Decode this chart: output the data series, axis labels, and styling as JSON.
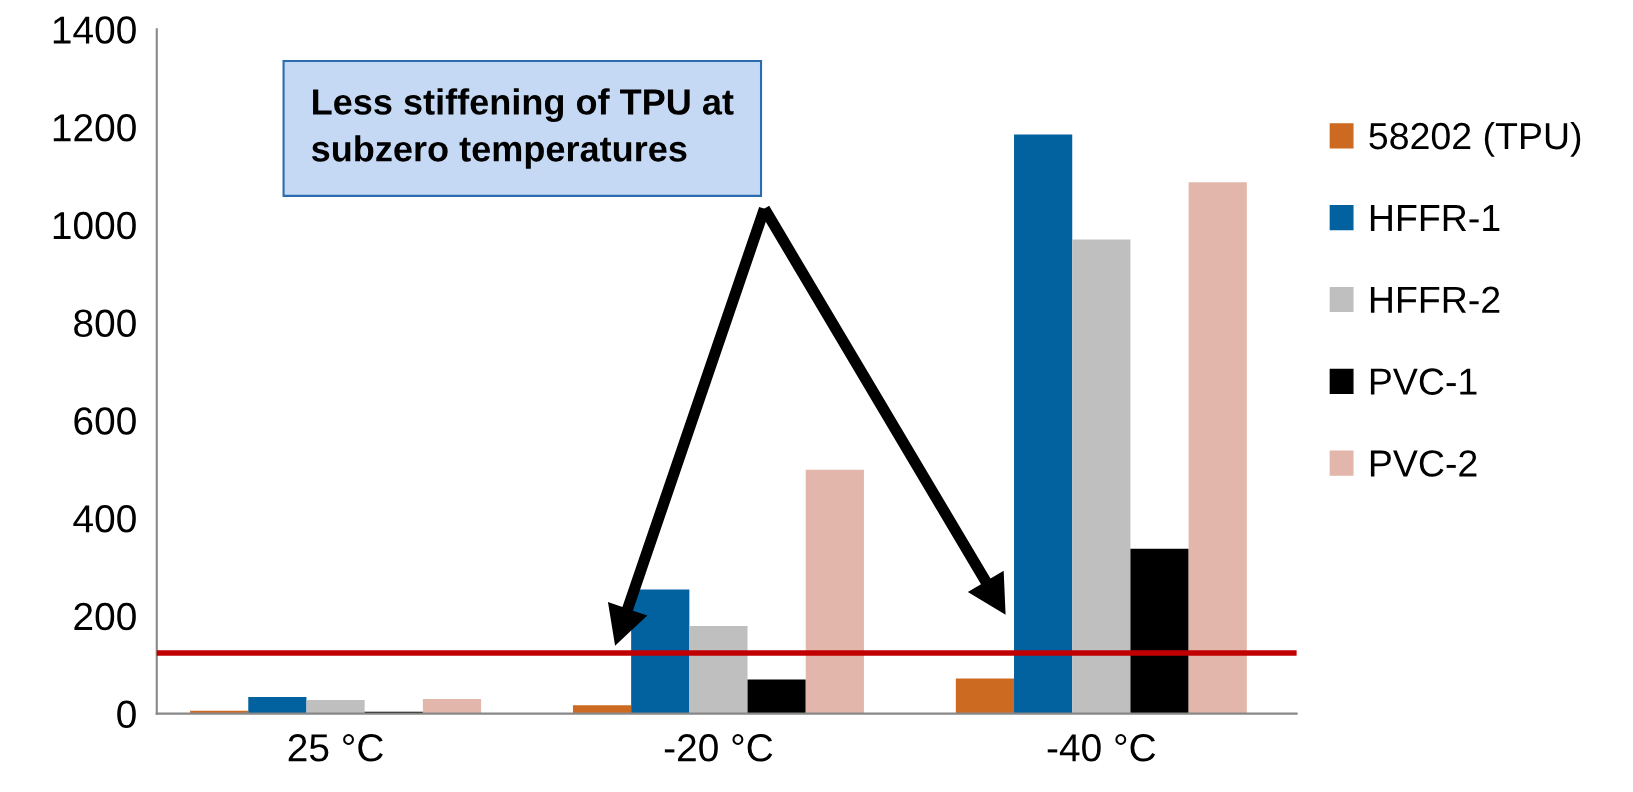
{
  "chart_data": {
    "type": "bar",
    "categories": [
      "25 °C",
      "-20 °C",
      "-40 °C"
    ],
    "series": [
      {
        "name": "58202 (TPU)",
        "color": "#cc6a22",
        "values": [
          6,
          17,
          72
        ]
      },
      {
        "name": "HFFR-1",
        "color": "#02619f",
        "values": [
          34,
          254,
          1185
        ]
      },
      {
        "name": "HFFR-2",
        "color": "#bfbfbf",
        "values": [
          28,
          179,
          970
        ]
      },
      {
        "name": "PVC-1",
        "color": "#000000",
        "values": [
          4,
          70,
          337
        ]
      },
      {
        "name": "PVC-2",
        "color": "#e2b6aa",
        "values": [
          30,
          499,
          1087
        ]
      }
    ],
    "ylim": [
      0,
      1400
    ],
    "yticks": [
      0,
      200,
      400,
      600,
      800,
      1000,
      1200,
      1400
    ],
    "ref_lines": [
      {
        "axis": "y",
        "value": 124,
        "color": "#c00000"
      }
    ],
    "annotations": [
      "Less stiffening of TPU at\nsubzero temperatures"
    ],
    "legend": "right",
    "grid": false
  }
}
